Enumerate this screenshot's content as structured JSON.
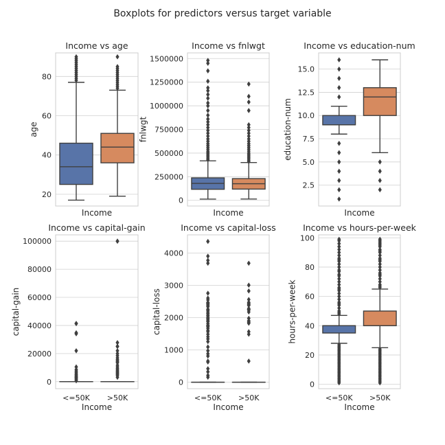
{
  "figure": {
    "title": "Boxplots for predictors versus target variable"
  },
  "colors": {
    "low": "#5874a8",
    "high": "#d68a5f",
    "grid": "#d0d0d0",
    "frame": "#cccccc",
    "line": "#3f3f3f"
  },
  "chart_data": [
    {
      "type": "box",
      "title": "Income vs age",
      "xlabel": "Income",
      "ylabel": "age",
      "categories": [
        "<=50K",
        ">50K"
      ],
      "show_category_labels": false,
      "grid": true,
      "ylim": [
        14,
        92
      ],
      "yticks": [
        20,
        40,
        60,
        80
      ],
      "ytick_labels": [
        "20",
        "40",
        "60",
        "80"
      ],
      "boxes": [
        {
          "category": "<=50K",
          "min": 17,
          "q1": 25,
          "median": 34,
          "q3": 46,
          "max": 77,
          "outliers": [
            78,
            79,
            80,
            81,
            82,
            83,
            84,
            85,
            86,
            87,
            88,
            89,
            90
          ]
        },
        {
          "category": ">50K",
          "min": 19,
          "q1": 36,
          "median": 44,
          "q3": 51,
          "max": 73,
          "outliers": [
            74,
            75,
            76,
            77,
            78,
            79,
            80,
            81,
            82,
            83,
            84,
            85,
            90
          ]
        }
      ]
    },
    {
      "type": "box",
      "title": "Income vs fnlwgt",
      "xlabel": "Income",
      "ylabel": "fnlwgt",
      "categories": [
        "<=50K",
        ">50K"
      ],
      "show_category_labels": false,
      "grid": true,
      "ylim": [
        -60000,
        1560000
      ],
      "yticks": [
        0,
        250000,
        500000,
        750000,
        1000000,
        1250000,
        1500000
      ],
      "ytick_labels": [
        "0",
        "250000",
        "500000",
        "750000",
        "1000000",
        "1250000",
        "1500000"
      ],
      "boxes": [
        {
          "category": "<=50K",
          "min": 13000,
          "q1": 117000,
          "median": 179000,
          "q3": 238000,
          "max": 418000,
          "outliers": [
            430000,
            445000,
            460000,
            475000,
            490000,
            505000,
            520000,
            540000,
            560000,
            580000,
            600000,
            625000,
            650000,
            680000,
            710000,
            740000,
            770000,
            800000,
            830000,
            860000,
            900000,
            950000,
            1000000,
            1030000,
            1080000,
            1120000,
            1160000,
            1190000,
            1260000,
            1370000,
            1450000,
            1480000
          ]
        },
        {
          "category": ">50K",
          "min": 14000,
          "q1": 119000,
          "median": 176000,
          "q3": 230000,
          "max": 400000,
          "outliers": [
            410000,
            425000,
            440000,
            455000,
            470000,
            485000,
            500000,
            520000,
            540000,
            560000,
            580000,
            600000,
            625000,
            650000,
            680000,
            710000,
            740000,
            770000,
            800000,
            950000,
            1040000,
            1100000,
            1230000
          ]
        }
      ]
    },
    {
      "type": "box",
      "title": "Income vs education-num",
      "xlabel": "Income",
      "ylabel": "education-num",
      "categories": [
        "<=50K",
        ">50K"
      ],
      "show_category_labels": false,
      "grid": true,
      "ylim": [
        0.25,
        16.75
      ],
      "yticks": [
        2.5,
        5.0,
        7.5,
        10.0,
        12.5,
        15.0
      ],
      "ytick_labels": [
        "2.5",
        "5.0",
        "7.5",
        "10.0",
        "12.5",
        "15.0"
      ],
      "boxes": [
        {
          "category": "<=50K",
          "min": 8,
          "q1": 9,
          "median": 9,
          "q3": 10,
          "max": 11,
          "outliers": [
            1,
            2,
            3,
            4,
            5,
            6,
            7,
            12,
            13,
            14,
            15,
            16
          ]
        },
        {
          "category": ">50K",
          "min": 6,
          "q1": 10,
          "median": 12,
          "q3": 13,
          "max": 16,
          "outliers": [
            2,
            3,
            4,
            5
          ]
        }
      ]
    },
    {
      "type": "box",
      "title": "Income vs capital-gain",
      "xlabel": "Income",
      "ylabel": "capital-gain",
      "categories": [
        "<=50K",
        ">50K"
      ],
      "show_category_labels": true,
      "grid": true,
      "ylim": [
        -5000,
        104500
      ],
      "yticks": [
        0,
        20000,
        40000,
        60000,
        80000,
        100000
      ],
      "ytick_labels": [
        "0",
        "20000",
        "40000",
        "60000",
        "80000",
        "100000"
      ],
      "boxes": [
        {
          "category": "<=50K",
          "min": 0,
          "q1": 0,
          "median": 0,
          "q3": 0,
          "max": 0,
          "outliers": [
            600,
            1500,
            2200,
            2900,
            3300,
            4000,
            4800,
            5500,
            6500,
            7500,
            8600,
            10500,
            22000,
            34100,
            34800,
            41300,
            41500
          ]
        },
        {
          "category": ">50K",
          "min": 0,
          "q1": 0,
          "median": 0,
          "q3": 0,
          "max": 0,
          "outliers": [
            3100,
            4400,
            5200,
            5800,
            6500,
            7300,
            7700,
            8600,
            9400,
            10500,
            11700,
            13500,
            14100,
            15000,
            15800,
            17000,
            18500,
            20000,
            22000,
            25000,
            25200,
            27800,
            99999,
            100000
          ]
        }
      ]
    },
    {
      "type": "box",
      "title": "Income vs capital-loss",
      "xlabel": "Income",
      "ylabel": "capital-loss",
      "categories": [
        "<=50K",
        ">50K"
      ],
      "show_category_labels": true,
      "grid": true,
      "ylim": [
        -200,
        4560
      ],
      "yticks": [
        0,
        1000,
        2000,
        3000,
        4000
      ],
      "ytick_labels": [
        "0",
        "1000",
        "2000",
        "3000",
        "4000"
      ],
      "boxes": [
        {
          "category": "<=50K",
          "min": 0,
          "q1": 0,
          "median": 0,
          "q3": 0,
          "max": 0,
          "outliers": [
            155,
            213,
            323,
            419,
            625,
            653,
            810,
            880,
            974,
            1092,
            1258,
            1340,
            1408,
            1485,
            1564,
            1602,
            1668,
            1719,
            1741,
            1762,
            1816,
            1876,
            1902,
            1944,
            1980,
            2001,
            2051,
            2080,
            2129,
            2149,
            2201,
            2238,
            2258,
            2339,
            2377,
            2415,
            2444,
            2457,
            2467,
            2547,
            2603,
            2754,
            3683,
            3770,
            3900,
            4356
          ]
        },
        {
          "category": ">50K",
          "min": 0,
          "q1": 0,
          "median": 0,
          "q3": 0,
          "max": 0,
          "outliers": [
            653,
            1485,
            1564,
            1825,
            1848,
            1887,
            1902,
            1977,
            2174,
            2231,
            2246,
            2258,
            2282,
            2377,
            2392,
            2415,
            2444,
            2472,
            2559,
            2824,
            3004,
            3683
          ]
        }
      ]
    },
    {
      "type": "box",
      "title": "Income vs hours-per-week",
      "xlabel": "Income",
      "ylabel": "hours-per-week",
      "categories": [
        "<=50K",
        ">50K"
      ],
      "show_category_labels": true,
      "grid": true,
      "ylim": [
        -3,
        102
      ],
      "yticks": [
        0,
        20,
        40,
        60,
        80,
        100
      ],
      "ytick_labels": [
        "0",
        "20",
        "40",
        "60",
        "80",
        "100"
      ],
      "boxes": [
        {
          "category": "<=50K",
          "min": 28,
          "q1": 35,
          "median": 40,
          "q3": 40,
          "max": 47,
          "outliers": [
            1,
            2,
            3,
            4,
            5,
            6,
            7,
            8,
            9,
            10,
            11,
            12,
            13,
            14,
            15,
            16,
            17,
            18,
            19,
            20,
            21,
            22,
            23,
            24,
            25,
            26,
            27,
            48,
            49,
            50,
            52,
            54,
            55,
            56,
            58,
            60,
            62,
            64,
            65,
            66,
            68,
            70,
            72,
            74,
            75,
            77,
            78,
            80,
            82,
            84,
            85,
            86,
            88,
            90,
            92,
            94,
            96,
            98,
            99
          ]
        },
        {
          "category": ">50K",
          "min": 25,
          "q1": 40,
          "median": 40,
          "q3": 50,
          "max": 65,
          "outliers": [
            1,
            2,
            3,
            4,
            5,
            6,
            7,
            8,
            9,
            10,
            11,
            12,
            13,
            14,
            15,
            16,
            17,
            18,
            19,
            20,
            21,
            22,
            23,
            24,
            66,
            67,
            68,
            70,
            72,
            74,
            75,
            76,
            78,
            80,
            82,
            84,
            85,
            86,
            88,
            90,
            91,
            92,
            94,
            95,
            96,
            97,
            98,
            99
          ]
        }
      ]
    }
  ]
}
